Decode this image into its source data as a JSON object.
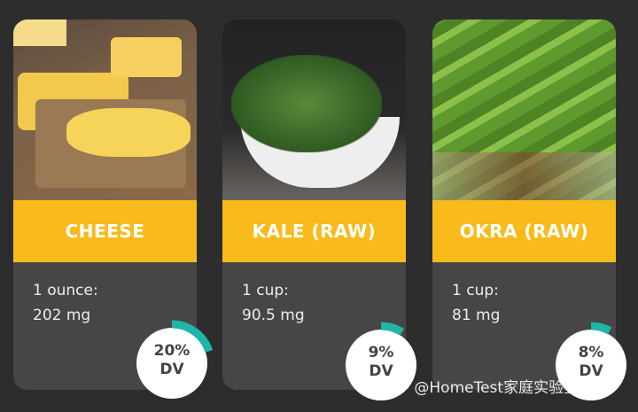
{
  "items": [
    {
      "name": "CHEESE",
      "serving": "1 ounce:",
      "amount": "202 mg",
      "dv": "20%",
      "dv_label": "DV",
      "dv_percent": 20
    },
    {
      "name": "KALE (RAW)",
      "serving": "1 cup:",
      "amount": "90.5 mg",
      "dv": "9%",
      "dv_label": "DV",
      "dv_percent": 9
    },
    {
      "name": "OKRA (RAW)",
      "serving": "1 cup:",
      "amount": "81 mg",
      "dv": "8%",
      "dv_label": "DV",
      "dv_percent": 8
    }
  ],
  "watermark": "知乎 @HomeTest家庭实验室",
  "colors": {
    "accent": "#f8bb1b",
    "ring": "#1fb5a8",
    "card": "#474546",
    "background": "#2e2d2e"
  }
}
